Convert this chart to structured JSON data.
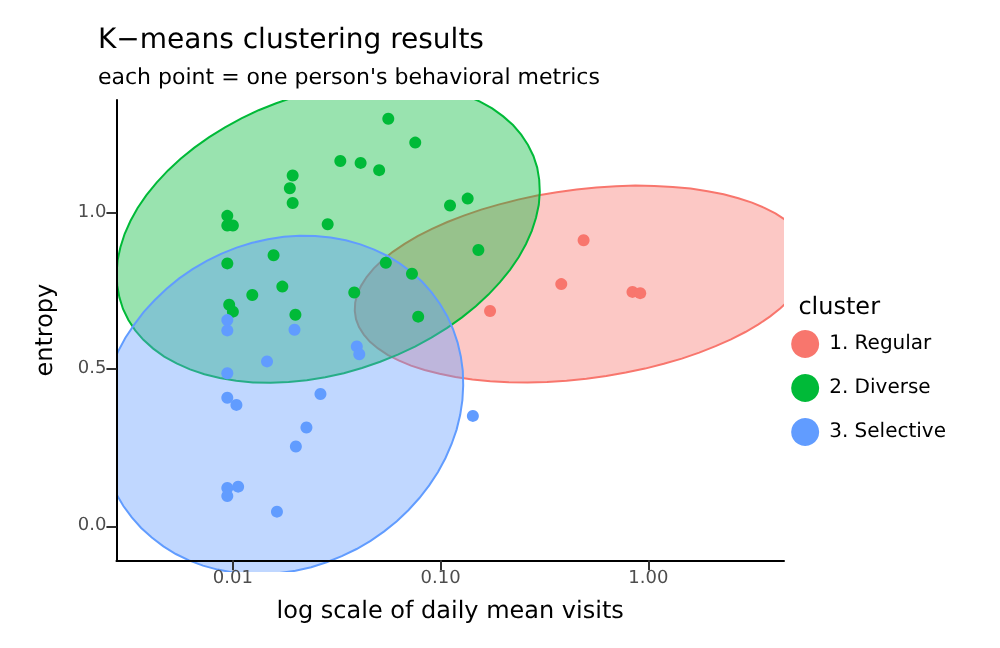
{
  "chart_data": {
    "type": "scatter",
    "title": "K−means clustering results",
    "subtitle": "each point = one person's behavioral metrics",
    "xlabel": "log scale of daily mean visits",
    "ylabel": "entropy",
    "legend_title": "cluster",
    "log": "x",
    "grid": false,
    "legend": "right",
    "marker": "circle",
    "xlim": [
      0.00275,
      4.5
    ],
    "ylim": [
      -0.11,
      1.36
    ],
    "xticks": [
      {
        "value": 0.01,
        "label": "0.01"
      },
      {
        "value": 0.1,
        "label": "0.10"
      },
      {
        "value": 1,
        "label": "1.00"
      }
    ],
    "yticks": [
      {
        "value": 0,
        "label": "0.0"
      },
      {
        "value": 0.5,
        "label": "0.5"
      },
      {
        "value": 1,
        "label": "1.0"
      }
    ],
    "series": [
      {
        "name": "1. Regular",
        "color": "#f8766d",
        "x": [
          0.488,
          0.381,
          0.839,
          0.914,
          0.173
        ],
        "values": [
          0.912,
          0.772,
          0.747,
          0.743,
          0.686
        ]
      },
      {
        "name": "2. Diverse",
        "color": "#00ba38",
        "x": [
          0.056,
          0.0755,
          0.0329,
          0.0412,
          0.0506,
          0.0194,
          0.0188,
          0.0194,
          0.111,
          0.135,
          0.0094,
          0.0094,
          0.01,
          0.0286,
          0.0094,
          0.0157,
          0.0545,
          0.0728,
          0.0173,
          0.0124,
          0.0384,
          0.0096,
          0.01,
          0.02,
          0.078,
          0.152
        ],
        "values": [
          1.3,
          1.224,
          1.165,
          1.159,
          1.136,
          1.119,
          1.078,
          1.031,
          1.023,
          1.045,
          0.99,
          0.959,
          0.959,
          0.963,
          0.838,
          0.864,
          0.84,
          0.805,
          0.764,
          0.737,
          0.745,
          0.706,
          0.684,
          0.674,
          0.668,
          0.881
        ]
      },
      {
        "name": "3. Selective",
        "color": "#619cff",
        "x": [
          0.0094,
          0.0094,
          0.0198,
          0.0146,
          0.0395,
          0.0406,
          0.0094,
          0.0094,
          0.0104,
          0.0264,
          0.0226,
          0.0201,
          0.0094,
          0.0106,
          0.0094,
          0.0163,
          0.143
        ],
        "values": [
          0.657,
          0.624,
          0.626,
          0.525,
          0.573,
          0.548,
          0.487,
          0.409,
          0.386,
          0.421,
          0.314,
          0.253,
          0.121,
          0.125,
          0.095,
          0.045,
          0.351
        ]
      }
    ]
  }
}
